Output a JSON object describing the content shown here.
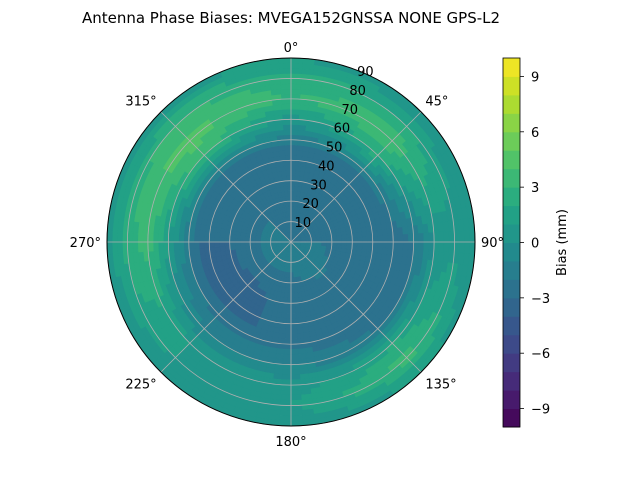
{
  "chart_data": {
    "type": "polar-contour",
    "title": "Antenna Phase Biases: MVEGA152GNSSA   NONE GPS-L2",
    "azimuth_ticks": [
      {
        "deg": 0,
        "label": "0°"
      },
      {
        "deg": 45,
        "label": "45°"
      },
      {
        "deg": 90,
        "label": "90°"
      },
      {
        "deg": 135,
        "label": "135°"
      },
      {
        "deg": 180,
        "label": "180°"
      },
      {
        "deg": 225,
        "label": "225°"
      },
      {
        "deg": 270,
        "label": "270°"
      },
      {
        "deg": 315,
        "label": "315°"
      }
    ],
    "radial_ticks": [
      10,
      20,
      30,
      40,
      50,
      60,
      70,
      80,
      90
    ],
    "radial_range": [
      0,
      90
    ],
    "grid": true,
    "colorbar": {
      "label": "Bias (mm)",
      "colormap": "viridis",
      "range": [
        -10,
        10
      ],
      "ticks": [
        -9,
        -6,
        -3,
        0,
        3,
        6,
        9
      ],
      "levels": 20
    },
    "field": {
      "description_units": "mm",
      "rings": [
        {
          "r": 0,
          "values": [
            -2.0,
            -2.0,
            -2.0,
            -2.0,
            -2.0,
            -2.0,
            -2.0,
            -2.0
          ]
        },
        {
          "r": 15,
          "values": [
            -2.5,
            -2.5,
            -2.0,
            -1.5,
            -2.0,
            -2.0,
            -2.0,
            -2.0
          ]
        },
        {
          "r": 30,
          "values": [
            -3.0,
            -3.0,
            -3.0,
            -2.5,
            -2.5,
            -3.5,
            -3.0,
            -3.0
          ]
        },
        {
          "r": 45,
          "values": [
            -2.5,
            -2.5,
            -3.0,
            -3.0,
            -3.0,
            -3.0,
            -3.0,
            -2.5
          ]
        },
        {
          "r": 60,
          "values": [
            0.5,
            2.5,
            -2.0,
            -2.0,
            -1.0,
            -1.0,
            1.0,
            3.5
          ]
        },
        {
          "r": 70,
          "values": [
            3.0,
            4.0,
            0.0,
            2.0,
            0.5,
            1.0,
            3.5,
            4.5
          ]
        },
        {
          "r": 80,
          "values": [
            2.5,
            2.0,
            0.5,
            3.5,
            1.0,
            1.0,
            2.5,
            3.0
          ]
        },
        {
          "r": 90,
          "values": [
            1.0,
            0.0,
            0.0,
            1.0,
            0.0,
            0.0,
            0.5,
            0.5
          ]
        }
      ],
      "azimuths": [
        0,
        45,
        90,
        135,
        180,
        225,
        270,
        315
      ]
    }
  }
}
